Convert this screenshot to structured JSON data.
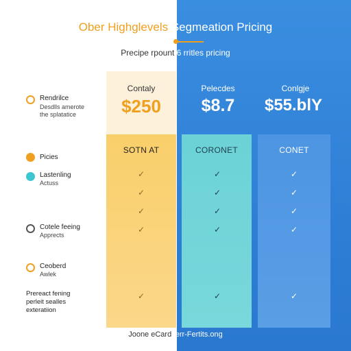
{
  "colors": {
    "accent_orange": "#f0a020",
    "blue_panel": "#3a8ee0",
    "col1": "#f9cf6a",
    "col2": "#6cd2d6",
    "col3": "#4d95e2"
  },
  "header": {
    "title_left": "Ober Highglevels ",
    "title_right": "Segmeation Pricing",
    "subtitle_left": "Precipe rpount ",
    "subtitle_right": "6 rritles pricing"
  },
  "features": [
    {
      "icon": "ring-icon",
      "label": "Rendrilce",
      "sub": "Desdlls amerote\nthe splatatice"
    },
    {
      "icon": "orange-dot-icon",
      "label": "Picies",
      "sub": ""
    },
    {
      "icon": "teal-dot-icon",
      "label": "Lastenling",
      "sub": "Actuss"
    },
    {
      "icon": "gear-icon",
      "label": "Cotele feeing",
      "sub": "Apprects"
    },
    {
      "icon": "orange-gear-icon",
      "label": "Ceoberd",
      "sub": "Awlek"
    },
    {
      "icon": "",
      "label": "Prereact fening",
      "sub": "perleit sealles\nexteratiion"
    }
  ],
  "plans": [
    {
      "name": "Contaly",
      "price": "$250",
      "tier": "SOTN AT"
    },
    {
      "name": "Pelecdes",
      "price": "$8.7",
      "tier": "CORONET"
    },
    {
      "name": "Conlgje",
      "price": "$55.blY",
      "tier": "CONET"
    }
  ],
  "check_glyph": "✓",
  "footer": {
    "left": "Joone eCard",
    "right": "yerr-Fertits.ong"
  }
}
